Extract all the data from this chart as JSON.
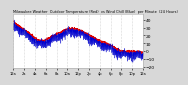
{
  "title": "Milwaukee Weather  Outdoor Temperature (Red)  vs Wind Chill (Blue)  per Minute  (24 Hours)",
  "bg_color": "#d8d8d8",
  "plot_bg_color": "#ffffff",
  "text_color": "#000000",
  "grid_color": "#aaaaaa",
  "red_color": "#dd0000",
  "blue_color": "#0000cc",
  "ylim": [
    -22,
    47
  ],
  "yticks": [
    40,
    30,
    20,
    10,
    0,
    -10,
    -20
  ],
  "num_points": 1440,
  "seed": 42,
  "xtick_labels": [
    "12a",
    "2a",
    "4a",
    "6a",
    "8a",
    "10a",
    "12p",
    "2p",
    "4p",
    "6p",
    "8p",
    "10p",
    "12a"
  ],
  "num_xticks": 13
}
